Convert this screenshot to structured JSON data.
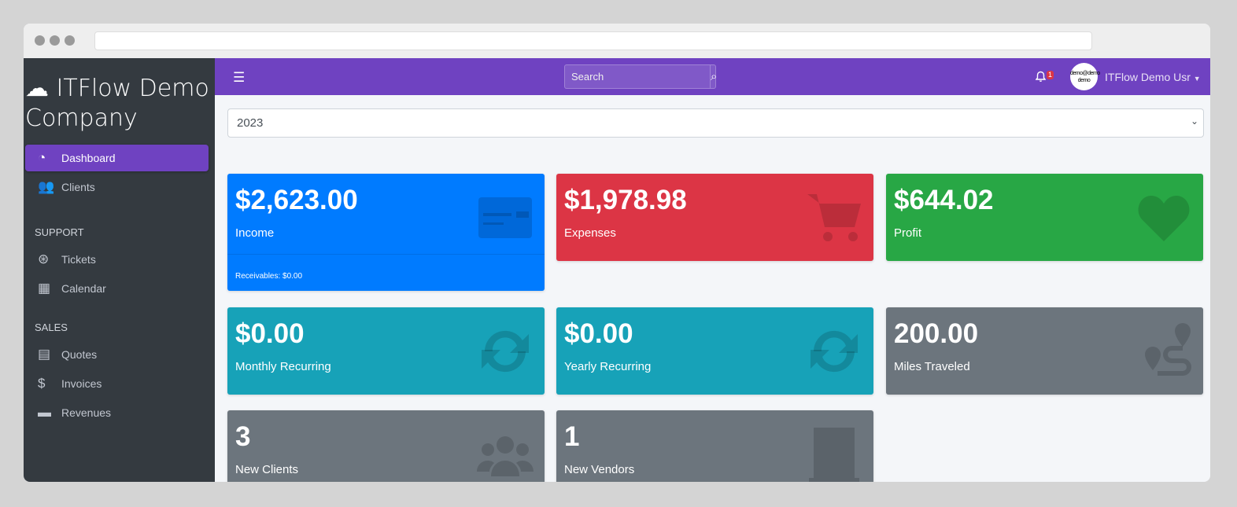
{
  "sidebar": {
    "brand": "ITFlow Demo Company",
    "items": [
      {
        "label": "Dashboard",
        "icon": "tachometer-icon"
      },
      {
        "label": "Clients",
        "icon": "users-icon"
      }
    ],
    "support_header": "SUPPORT",
    "support": [
      {
        "label": "Tickets",
        "icon": "life-ring-icon"
      },
      {
        "label": "Calendar",
        "icon": "calendar-icon"
      }
    ],
    "sales_header": "SALES",
    "sales": [
      {
        "label": "Quotes",
        "icon": "file-icon"
      },
      {
        "label": "Invoices",
        "icon": "invoice-icon"
      },
      {
        "label": "Revenues",
        "icon": "credit-card-icon"
      }
    ]
  },
  "topbar": {
    "search_placeholder": "Search",
    "notification_count": "1",
    "avatar_text": "demo@demo demo",
    "user_name": "ITFlow Demo Usr"
  },
  "year_select": "2023",
  "cards": [
    {
      "value": "$2,623.00",
      "label": "Income",
      "footer": "Receivables: $0.00",
      "color": "#007bff",
      "icon": "credit-card-icon"
    },
    {
      "value": "$1,978.98",
      "label": "Expenses",
      "color": "#dc3545",
      "icon": "shopping-cart-icon"
    },
    {
      "value": "$644.02",
      "label": "Profit",
      "color": "#28a745",
      "icon": "heart-icon"
    },
    {
      "value": "$0.00",
      "label": "Monthly Recurring",
      "color": "#17a2b8",
      "icon": "sync-icon"
    },
    {
      "value": "$0.00",
      "label": "Yearly Recurring",
      "color": "#17a2b8",
      "icon": "sync-icon"
    },
    {
      "value": "200.00",
      "label": "Miles Traveled",
      "color": "#6c757d",
      "icon": "route-icon"
    },
    {
      "value": "3",
      "label": "New Clients",
      "color": "#6c757d",
      "icon": "users-icon"
    },
    {
      "value": "1",
      "label": "New Vendors",
      "color": "#6c757d",
      "icon": "building-icon"
    }
  ]
}
